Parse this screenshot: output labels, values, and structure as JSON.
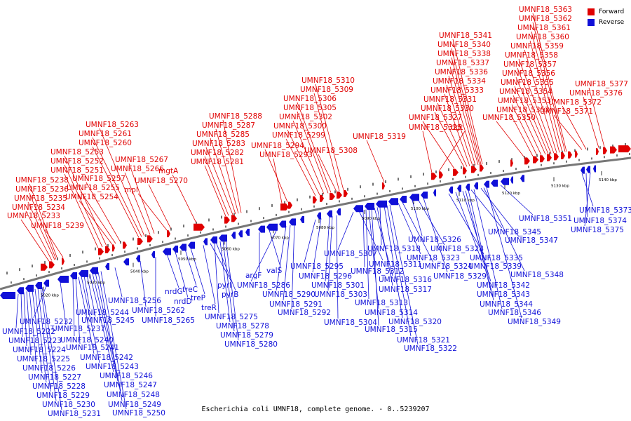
{
  "legend": {
    "forward_label": "Forward",
    "reverse_label": "Reverse",
    "forward_color": "#e00000",
    "reverse_color": "#1010d8"
  },
  "caption": "Escherichia coli UMNF18, complete genome. - 0..5239207",
  "axis_ticks": [
    "5020 kbp",
    "5030 kbp",
    "5040 kbp",
    "5050 kbp",
    "5060 kbp",
    "5070 kbp",
    "5080 kbp",
    "5090 kbp",
    "5100 kbp",
    "5110 kbp",
    "5120 kbp",
    "5130 kbp",
    "5140 kbp"
  ],
  "forward_labels": [
    "UMNF18_5233",
    "UMNF18_5234",
    "UMNF18_5235",
    "UMNF18_5236",
    "UMNF18_5238",
    "UMNF18_5239",
    "UMNF18_5251",
    "UMNF18_5252",
    "UMNF18_5253",
    "UMNF18_5254",
    "UMNF18_5255",
    "UMNF18_5257",
    "UMNF18_5260",
    "UMNF18_5261",
    "UMNF18_5263",
    "UMNF18_5266",
    "UMNF18_5267",
    "mpl",
    "UMNF18_5270",
    "mgtA",
    "UMNF18_5281",
    "UMNF18_5282",
    "UMNF18_5283",
    "UMNF18_5285",
    "UMNF18_5287",
    "UMNF18_5288",
    "UMNF18_5293",
    "UMNF18_5294",
    "UMNF18_5299",
    "UMNF18_5300",
    "UMNF18_5302",
    "UMNF18_5305",
    "UMNF18_5306",
    "UMNF18_5308",
    "UMNF18_5309",
    "UMNF18_5310",
    "UMNF18_5319",
    "UMNF18_5325",
    "dgt",
    "UMNF18_5327",
    "UMNF18_5330",
    "UMNF18_5331",
    "UMNF18_5333",
    "UMNF18_5334",
    "UMNF18_5336",
    "UMNF18_5337",
    "UMNF18_5338",
    "UMNF18_5340",
    "UMNF18_5341",
    "UMNF18_5350",
    "UMNF18_5352",
    "UMNF18_5353",
    "UMNF18_5354",
    "UMNF18_5355",
    "UMNF18_5356",
    "UMNF18_5357",
    "UMNF18_5358",
    "UMNF18_5359",
    "UMNF18_5360",
    "UMNF18_5361",
    "UMNF18_5362",
    "UMNF18_5363",
    "UMNF18_5371",
    "UMNF18_5372",
    "UMNF18_5376",
    "UMNF18_5377"
  ],
  "reverse_labels": [
    "UMNF18_5222",
    "UMNF18_5223",
    "UMNF18_5224",
    "UMNF18_5225",
    "UMNF18_5226",
    "UMNF18_5227",
    "UMNF18_5228",
    "UMNF18_5229",
    "UMNF18_5230",
    "UMNF18_5231",
    "UMNF18_5232",
    "UMNF18_5237",
    "UMNF18_5240",
    "UMNF18_5241",
    "UMNF18_5242",
    "UMNF18_5243",
    "UMNF18_5244",
    "UMNF18_5245",
    "UMNF18_5246",
    "UMNF18_5247",
    "UMNF18_5248",
    "UMNF18_5249",
    "UMNF18_5250",
    "UMNF18_5256",
    "UMNF18_5262",
    "UMNF18_5265",
    "nrdG",
    "nrdD",
    "treC",
    "treP",
    "treR",
    "pyrI",
    "pyrB",
    "UMNF18_5275",
    "UMNF18_5278",
    "UMNF18_5279",
    "UMNF18_5280",
    "argF",
    "valS",
    "UMNF18_5286",
    "UMNF18_5290",
    "UMNF18_5291",
    "UMNF18_5292",
    "UMNF18_5295",
    "UMNF18_5296",
    "UMNF18_5301",
    "UMNF18_5303",
    "UMNF18_5304",
    "UMNF18_5307",
    "UMNF18_5311",
    "UMNF18_5312",
    "UMNF18_5313",
    "UMNF18_5314",
    "UMNF18_5315",
    "UMNF18_5316",
    "UMNF18_5317",
    "UMNF18_5318",
    "UMNF18_5320",
    "UMNF18_5321",
    "UMNF18_5322",
    "UMNF18_5323",
    "UMNF18_5324",
    "UMNF18_5326",
    "UMNF18_5328",
    "UMNF18_5329",
    "UMNF18_5335",
    "UMNF18_5339",
    "UMNF18_5342",
    "UMNF18_5343",
    "UMNF18_5344",
    "UMNF18_5345",
    "UMNF18_5346",
    "UMNF18_5347",
    "UMNF18_5348",
    "UMNF18_5349",
    "UMNF18_5351",
    "UMNF18_5373",
    "UMNF18_5374",
    "UMNF18_5375"
  ]
}
